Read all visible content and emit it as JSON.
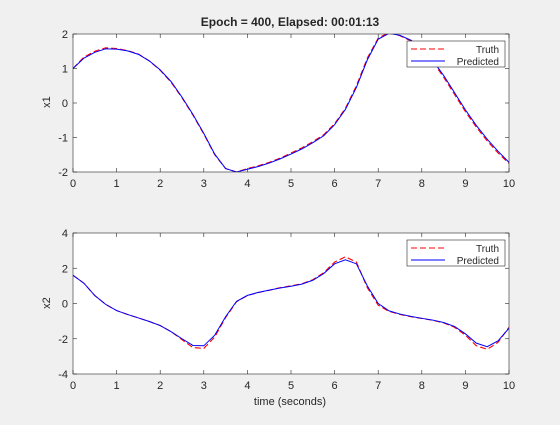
{
  "figure": {
    "background": "#f0f0f0",
    "title": "Epoch = 400, Elapsed: 00:01:13"
  },
  "chart_data": [
    {
      "type": "line",
      "title": "Epoch = 400, Elapsed: 00:01:13",
      "xlabel": "",
      "ylabel": "x1",
      "xlim": [
        0,
        10
      ],
      "ylim": [
        -2,
        2
      ],
      "xticks": [
        "0",
        "1",
        "2",
        "3",
        "4",
        "5",
        "6",
        "7",
        "8",
        "9",
        "10"
      ],
      "yticks": [
        "-2",
        "-1",
        "0",
        "1",
        "2"
      ],
      "legend": {
        "position": "top-right",
        "entries": [
          "Truth",
          "Predicted"
        ]
      },
      "series": [
        {
          "name": "Truth",
          "color": "#ff0000",
          "dash": true,
          "x": [
            0,
            0.25,
            0.5,
            0.75,
            1,
            1.25,
            1.5,
            1.75,
            2,
            2.25,
            2.5,
            2.75,
            3,
            3.25,
            3.5,
            3.75,
            4,
            4.25,
            4.5,
            4.75,
            5,
            5.25,
            5.5,
            5.75,
            6,
            6.25,
            6.5,
            6.75,
            7,
            7.25,
            7.5,
            7.75,
            8,
            8.25,
            8.5,
            8.75,
            9,
            9.25,
            9.5,
            9.75,
            10
          ],
          "y": [
            1.0,
            1.33,
            1.5,
            1.6,
            1.58,
            1.52,
            1.42,
            1.22,
            0.95,
            0.6,
            0.15,
            -0.35,
            -0.9,
            -1.5,
            -1.9,
            -2.0,
            -1.9,
            -1.82,
            -1.72,
            -1.6,
            -1.45,
            -1.3,
            -1.12,
            -0.92,
            -0.6,
            -0.15,
            0.5,
            1.3,
            1.88,
            2.05,
            1.95,
            1.8,
            1.55,
            1.2,
            0.75,
            0.25,
            -0.25,
            -0.7,
            -1.1,
            -1.45,
            -1.75
          ]
        },
        {
          "name": "Predicted",
          "color": "#0000ff",
          "dash": false,
          "x": [
            0,
            0.25,
            0.5,
            0.75,
            1,
            1.25,
            1.5,
            1.75,
            2,
            2.25,
            2.5,
            2.75,
            3,
            3.25,
            3.5,
            3.75,
            4,
            4.25,
            4.5,
            4.75,
            5,
            5.25,
            5.5,
            5.75,
            6,
            6.25,
            6.5,
            6.75,
            7,
            7.25,
            7.5,
            7.75,
            8,
            8.25,
            8.5,
            8.75,
            9,
            9.25,
            9.5,
            9.75,
            10
          ],
          "y": [
            1.0,
            1.3,
            1.47,
            1.57,
            1.56,
            1.51,
            1.41,
            1.22,
            0.96,
            0.62,
            0.17,
            -0.33,
            -0.88,
            -1.48,
            -1.9,
            -2.0,
            -1.92,
            -1.84,
            -1.74,
            -1.62,
            -1.48,
            -1.33,
            -1.15,
            -0.95,
            -0.63,
            -0.18,
            0.45,
            1.25,
            1.85,
            2.02,
            1.96,
            1.82,
            1.58,
            1.24,
            0.8,
            0.3,
            -0.2,
            -0.65,
            -1.05,
            -1.4,
            -1.72
          ]
        }
      ]
    },
    {
      "type": "line",
      "title": "",
      "xlabel": "time (seconds)",
      "ylabel": "x2",
      "xlim": [
        0,
        10
      ],
      "ylim": [
        -4,
        4
      ],
      "xticks": [
        "0",
        "1",
        "2",
        "3",
        "4",
        "5",
        "6",
        "7",
        "8",
        "9",
        "10"
      ],
      "yticks": [
        "-4",
        "-2",
        "0",
        "2",
        "4"
      ],
      "legend": {
        "position": "top-right",
        "entries": [
          "Truth",
          "Predicted"
        ]
      },
      "series": [
        {
          "name": "Truth",
          "color": "#ff0000",
          "dash": true,
          "x": [
            0,
            0.25,
            0.5,
            0.75,
            1,
            1.25,
            1.5,
            1.75,
            2,
            2.25,
            2.5,
            2.75,
            3,
            3.25,
            3.5,
            3.75,
            4,
            4.25,
            4.5,
            4.75,
            5,
            5.25,
            5.5,
            5.75,
            6,
            6.25,
            6.5,
            6.75,
            7,
            7.25,
            7.5,
            7.75,
            8,
            8.25,
            8.5,
            8.75,
            9,
            9.25,
            9.5,
            9.75,
            10
          ],
          "y": [
            1.6,
            1.15,
            0.45,
            -0.05,
            -0.4,
            -0.62,
            -0.82,
            -1.02,
            -1.25,
            -1.6,
            -2.05,
            -2.5,
            -2.55,
            -1.9,
            -0.8,
            0.1,
            0.45,
            0.62,
            0.75,
            0.9,
            1.0,
            1.12,
            1.35,
            1.75,
            2.35,
            2.65,
            2.35,
            0.9,
            -0.1,
            -0.45,
            -0.62,
            -0.75,
            -0.85,
            -0.95,
            -1.1,
            -1.35,
            -1.8,
            -2.4,
            -2.6,
            -2.2,
            -1.35
          ]
        },
        {
          "name": "Predicted",
          "color": "#0000ff",
          "dash": false,
          "x": [
            0,
            0.25,
            0.5,
            0.75,
            1,
            1.25,
            1.5,
            1.75,
            2,
            2.25,
            2.5,
            2.75,
            3,
            3.25,
            3.5,
            3.75,
            4,
            4.25,
            4.5,
            4.75,
            5,
            5.25,
            5.5,
            5.75,
            6,
            6.25,
            6.5,
            6.75,
            7,
            7.25,
            7.5,
            7.75,
            8,
            8.25,
            8.5,
            8.75,
            9,
            9.25,
            9.5,
            9.75,
            10
          ],
          "y": [
            1.6,
            1.15,
            0.45,
            -0.05,
            -0.4,
            -0.62,
            -0.82,
            -1.02,
            -1.25,
            -1.6,
            -2.0,
            -2.38,
            -2.4,
            -1.8,
            -0.75,
            0.12,
            0.46,
            0.63,
            0.76,
            0.88,
            0.98,
            1.1,
            1.32,
            1.7,
            2.25,
            2.48,
            2.25,
            1.0,
            0.0,
            -0.42,
            -0.6,
            -0.73,
            -0.84,
            -0.94,
            -1.08,
            -1.3,
            -1.72,
            -2.25,
            -2.45,
            -2.12,
            -1.4
          ]
        }
      ]
    }
  ]
}
